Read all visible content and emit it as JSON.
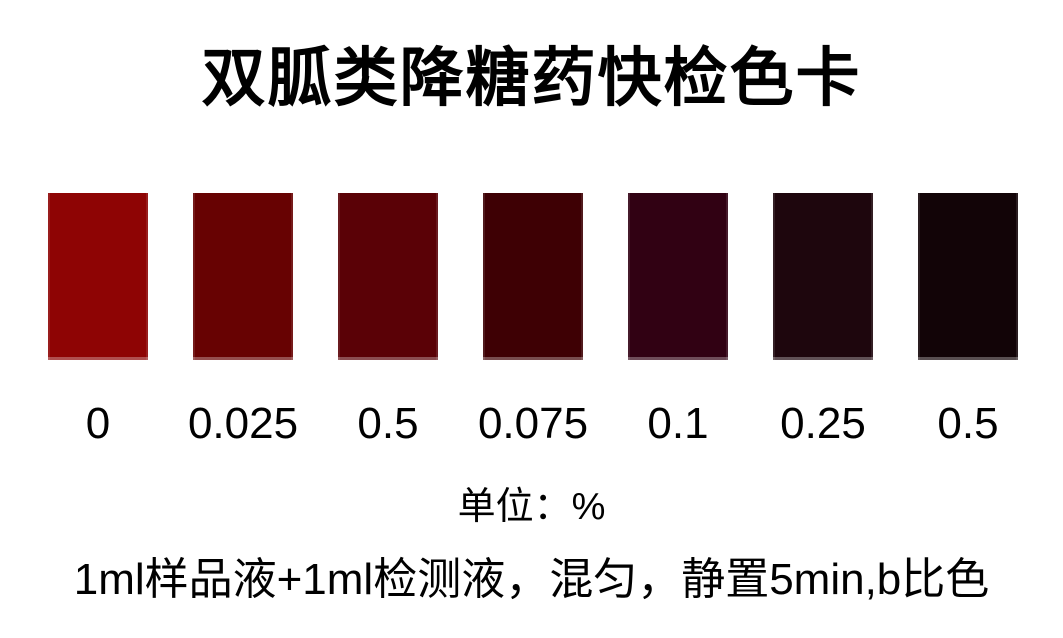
{
  "page": {
    "background": "#ffffff",
    "text_color": "#000000"
  },
  "title": "双胍类降糖药快检色卡",
  "unit_label": "单位：%",
  "instructions": "1ml样品液+1ml检测液，混匀，静置5min,b比色",
  "swatches": [
    {
      "label": "0",
      "color": "#8E0404"
    },
    {
      "label": "0.025",
      "color": "#670202"
    },
    {
      "label": "0.5",
      "color": "#5A0106"
    },
    {
      "label": "0.075",
      "color": "#3E0004"
    },
    {
      "label": "0.1",
      "color": "#310113"
    },
    {
      "label": "0.25",
      "color": "#1E060D"
    },
    {
      "label": "0.5",
      "color": "#120407"
    }
  ],
  "chart_data": {
    "type": "heatmap",
    "title": "双胍类降糖药快检色卡",
    "categories": [
      "0",
      "0.025",
      "0.5",
      "0.075",
      "0.1",
      "0.25",
      "0.5"
    ],
    "colors": [
      "#8E0404",
      "#670202",
      "#5A0106",
      "#3E0004",
      "#310113",
      "#1E060D",
      "#120407"
    ],
    "unit": "%",
    "xlabel": "单位：%",
    "annotation": "1ml样品液+1ml检测液，混匀，静置5min,b比色",
    "legend_position": "none",
    "grid": false,
    "layout": "horizontal swatch scale, concentration increases left to right, color darkens from bright red to near-black"
  }
}
